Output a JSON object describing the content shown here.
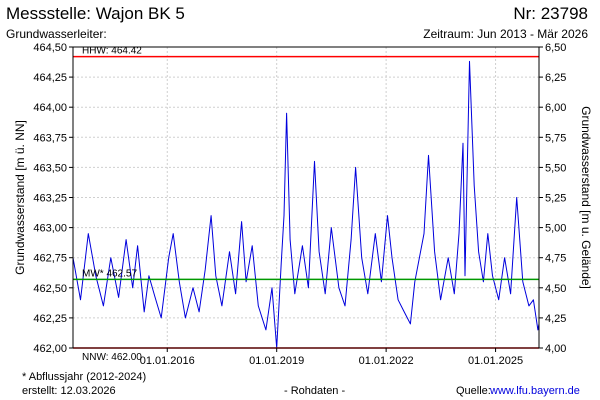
{
  "header": {
    "title": "Messstelle: Wajon BK 5",
    "station_number": "Nr: 23798",
    "aquifer_label": "Grundwasserleiter:",
    "period": "Zeitraum: Jun 2013 - Mär 2026"
  },
  "footer": {
    "footnote": "* Abflussjahr (2012-2024)",
    "created": "erstellt:  12.03.2026",
    "raw_data": "- Rohdaten -",
    "source_label": "Quelle:",
    "source_link": "www.lfu.bayern.de"
  },
  "chart_data": {
    "type": "line",
    "title": "",
    "ylabel": "Grundwasserstand [m ü. NN]",
    "ylabel_right": "Grundwasserstand [m u. Gelände]",
    "xlabel": "",
    "xlim": [
      "2013-06-01",
      "2026-03-12"
    ],
    "ylim": [
      462.0,
      464.5
    ],
    "ylim_right": [
      6.5,
      4.0
    ],
    "y_ticks": [
      "462,00",
      "462,25",
      "462,50",
      "462,75",
      "463,00",
      "463,25",
      "463,50",
      "463,75",
      "464,00",
      "464,25",
      "464,50"
    ],
    "y_ticks_right": [
      "4,00",
      "4,25",
      "4,50",
      "4,75",
      "5,00",
      "5,25",
      "5,50",
      "5,75",
      "6,00",
      "6,25",
      "6,50"
    ],
    "x_ticks": [
      "01.01.2016",
      "01.01.2019",
      "01.01.2022",
      "01.01.2025"
    ],
    "x_tick_dates": [
      "2016-01-01",
      "2019-01-01",
      "2022-01-01",
      "2025-01-01"
    ],
    "grid": true,
    "reference_lines": [
      {
        "label": "HHW: 464.42",
        "value": 464.42,
        "color": "#ff0000"
      },
      {
        "label": "MW* 462.57",
        "value": 462.57,
        "color": "#009900"
      },
      {
        "label": "NNW: 462.00",
        "value": 462.0,
        "color": "#ff0000"
      }
    ],
    "series": [
      {
        "color": "#0000dd",
        "x": [
          "2013-06-01",
          "2013-08-15",
          "2013-11-01",
          "2014-01-15",
          "2014-04-01",
          "2014-06-15",
          "2014-09-01",
          "2014-11-15",
          "2015-01-20",
          "2015-03-10",
          "2015-05-15",
          "2015-07-01",
          "2015-09-01",
          "2015-11-01",
          "2016-01-15",
          "2016-03-01",
          "2016-05-01",
          "2016-07-01",
          "2016-09-15",
          "2016-11-15",
          "2017-01-15",
          "2017-03-15",
          "2017-05-01",
          "2017-07-01",
          "2017-09-15",
          "2017-11-15",
          "2018-01-15",
          "2018-03-01",
          "2018-05-01",
          "2018-07-01",
          "2018-09-15",
          "2018-11-15",
          "2019-01-01",
          "2019-02-15",
          "2019-03-15",
          "2019-04-10",
          "2019-05-15",
          "2019-07-01",
          "2019-09-15",
          "2019-11-15",
          "2020-01-15",
          "2020-03-01",
          "2020-05-01",
          "2020-07-01",
          "2020-09-15",
          "2020-11-15",
          "2021-01-15",
          "2021-03-01",
          "2021-05-01",
          "2021-07-01",
          "2021-09-15",
          "2021-11-15",
          "2022-01-15",
          "2022-03-01",
          "2022-05-01",
          "2022-07-01",
          "2022-09-01",
          "2022-10-15",
          "2023-01-15",
          "2023-03-01",
          "2023-05-01",
          "2023-07-01",
          "2023-09-15",
          "2023-11-15",
          "2024-01-01",
          "2024-02-10",
          "2024-03-01",
          "2024-04-15",
          "2024-06-01",
          "2024-07-15",
          "2024-09-01",
          "2024-10-15",
          "2024-12-01",
          "2025-02-01",
          "2025-04-01",
          "2025-06-01",
          "2025-08-01",
          "2025-10-01",
          "2025-12-01",
          "2026-01-15",
          "2026-03-01",
          "2026-03-12"
        ],
        "y": [
          462.75,
          462.4,
          462.95,
          462.6,
          462.35,
          462.75,
          462.42,
          462.9,
          462.5,
          462.85,
          462.3,
          462.6,
          462.42,
          462.25,
          462.75,
          462.95,
          462.55,
          462.25,
          462.5,
          462.3,
          462.65,
          463.1,
          462.6,
          462.35,
          462.8,
          462.45,
          463.05,
          462.55,
          462.85,
          462.35,
          462.15,
          462.5,
          462.0,
          462.7,
          463.1,
          463.95,
          462.9,
          462.45,
          462.85,
          462.5,
          463.55,
          462.8,
          462.45,
          463.0,
          462.5,
          462.35,
          462.9,
          463.5,
          462.75,
          462.45,
          462.95,
          462.55,
          463.1,
          462.75,
          462.4,
          462.3,
          462.2,
          462.55,
          462.95,
          463.6,
          462.8,
          462.4,
          462.75,
          462.45,
          462.95,
          463.7,
          462.6,
          464.38,
          463.35,
          462.8,
          462.55,
          462.95,
          462.6,
          462.4,
          462.75,
          462.45,
          463.25,
          462.55,
          462.35,
          462.4,
          462.15,
          462.2
        ]
      }
    ]
  }
}
